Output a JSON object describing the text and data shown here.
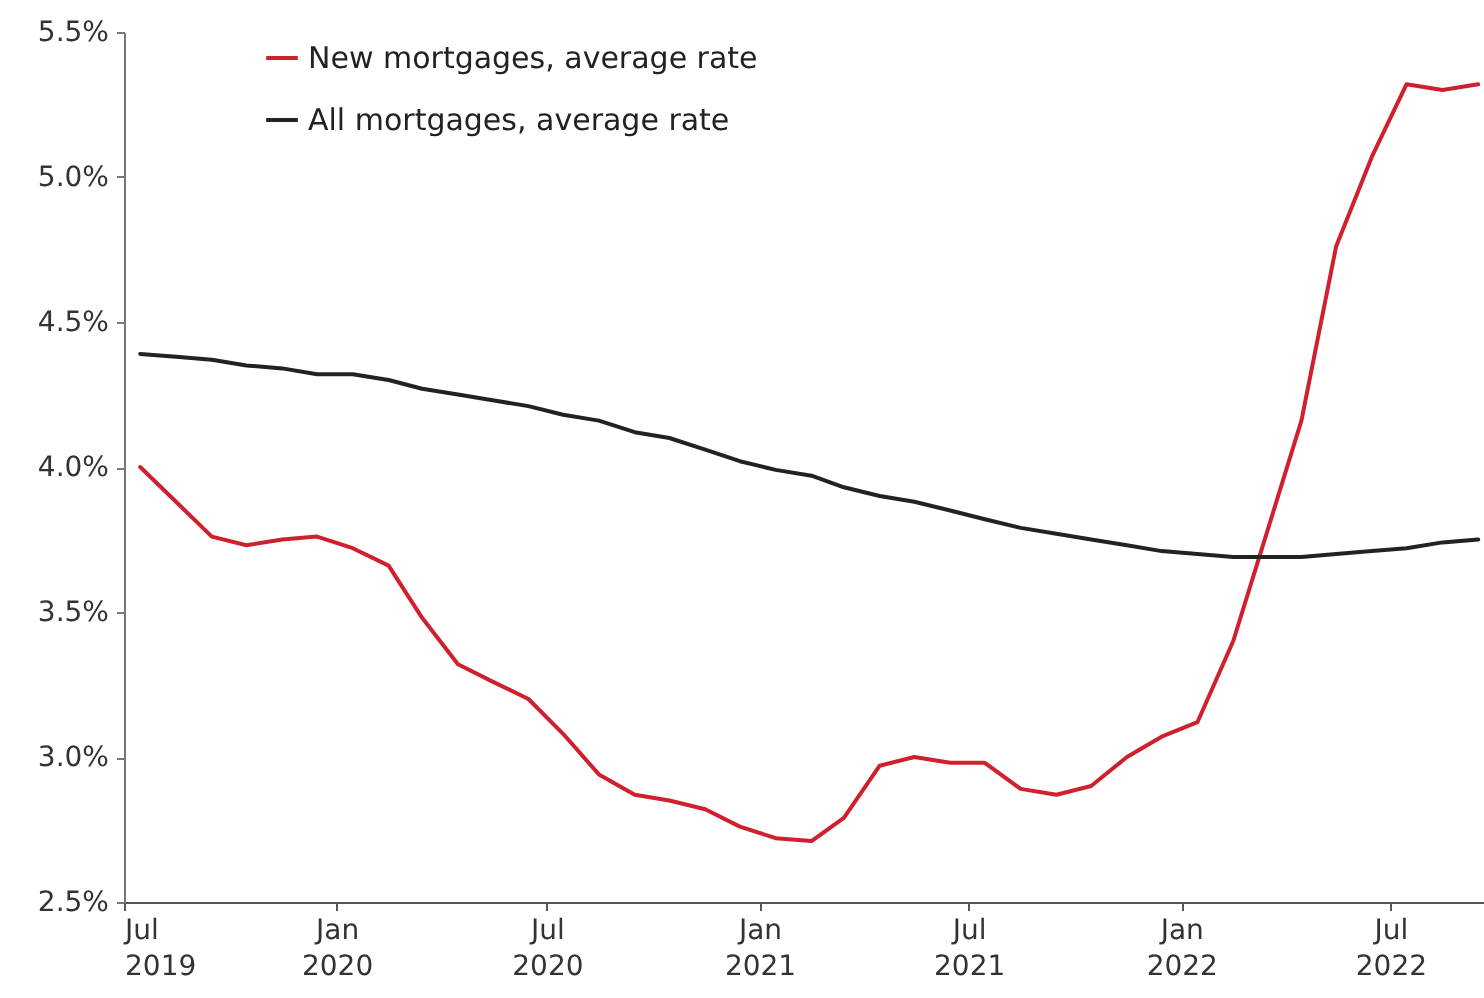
{
  "chart_data": {
    "type": "line",
    "x": [
      "2019-07-15",
      "2019-08-15",
      "2019-09-15",
      "2019-10-15",
      "2019-11-15",
      "2019-12-15",
      "2020-01-15",
      "2020-02-15",
      "2020-03-15",
      "2020-04-15",
      "2020-05-15",
      "2020-06-15",
      "2020-07-15",
      "2020-08-15",
      "2020-09-15",
      "2020-10-15",
      "2020-11-15",
      "2020-12-15",
      "2021-01-15",
      "2021-02-15",
      "2021-03-15",
      "2021-04-15",
      "2021-05-15",
      "2021-06-15",
      "2021-07-15",
      "2021-08-15",
      "2021-09-15",
      "2021-10-15",
      "2021-11-15",
      "2021-12-15",
      "2022-01-15",
      "2022-02-15",
      "2022-03-15",
      "2022-04-15",
      "2022-05-15",
      "2022-06-15",
      "2022-07-15",
      "2022-08-15",
      "2022-09-15"
    ],
    "series": [
      {
        "name": "New mortgages, average rate",
        "color": "#d0202e",
        "values": [
          4.0,
          3.88,
          3.76,
          3.73,
          3.75,
          3.76,
          3.72,
          3.66,
          3.48,
          3.32,
          3.26,
          3.2,
          3.08,
          2.94,
          2.87,
          2.85,
          2.82,
          2.76,
          2.72,
          2.71,
          2.79,
          2.97,
          3.0,
          2.98,
          2.98,
          2.89,
          2.87,
          2.9,
          3.0,
          3.07,
          3.12,
          3.4,
          3.76,
          4.16,
          4.76,
          5.07,
          5.32,
          5.3,
          5.32
        ]
      },
      {
        "name": "All mortgages, average rate",
        "color": "#222222",
        "values": [
          4.39,
          4.38,
          4.37,
          4.35,
          4.34,
          4.32,
          4.32,
          4.3,
          4.27,
          4.25,
          4.23,
          4.21,
          4.18,
          4.16,
          4.12,
          4.1,
          4.06,
          4.02,
          3.99,
          3.97,
          3.93,
          3.9,
          3.88,
          3.85,
          3.82,
          3.79,
          3.77,
          3.75,
          3.73,
          3.71,
          3.7,
          3.69,
          3.69,
          3.69,
          3.7,
          3.71,
          3.72,
          3.74,
          3.75
        ]
      }
    ],
    "xlim": [
      "2019-07-01",
      "2022-09-20"
    ],
    "xticks": [
      {
        "value": "2019-07-01",
        "label": "Jul 2019"
      },
      {
        "value": "2020-01-01",
        "label": "Jan 2020"
      },
      {
        "value": "2020-07-01",
        "label": "Jul 2020"
      },
      {
        "value": "2021-01-01",
        "label": "Jan 2021"
      },
      {
        "value": "2021-07-01",
        "label": "Jul 2021"
      },
      {
        "value": "2022-01-01",
        "label": "Jan 2022"
      },
      {
        "value": "2022-07-01",
        "label": "Jul 2022"
      }
    ],
    "ylim": [
      2.5,
      5.5
    ],
    "yticks": [
      {
        "value": 2.5,
        "label": "2.5%"
      },
      {
        "value": 3.0,
        "label": "3.0%"
      },
      {
        "value": 3.5,
        "label": "3.5%"
      },
      {
        "value": 4.0,
        "label": "4.0%"
      },
      {
        "value": 4.5,
        "label": "4.5%"
      },
      {
        "value": 5.0,
        "label": "5.0%"
      },
      {
        "value": 5.5,
        "label": "5.5%"
      }
    ],
    "grid": false,
    "legend": "top left",
    "line_style": "solid"
  }
}
